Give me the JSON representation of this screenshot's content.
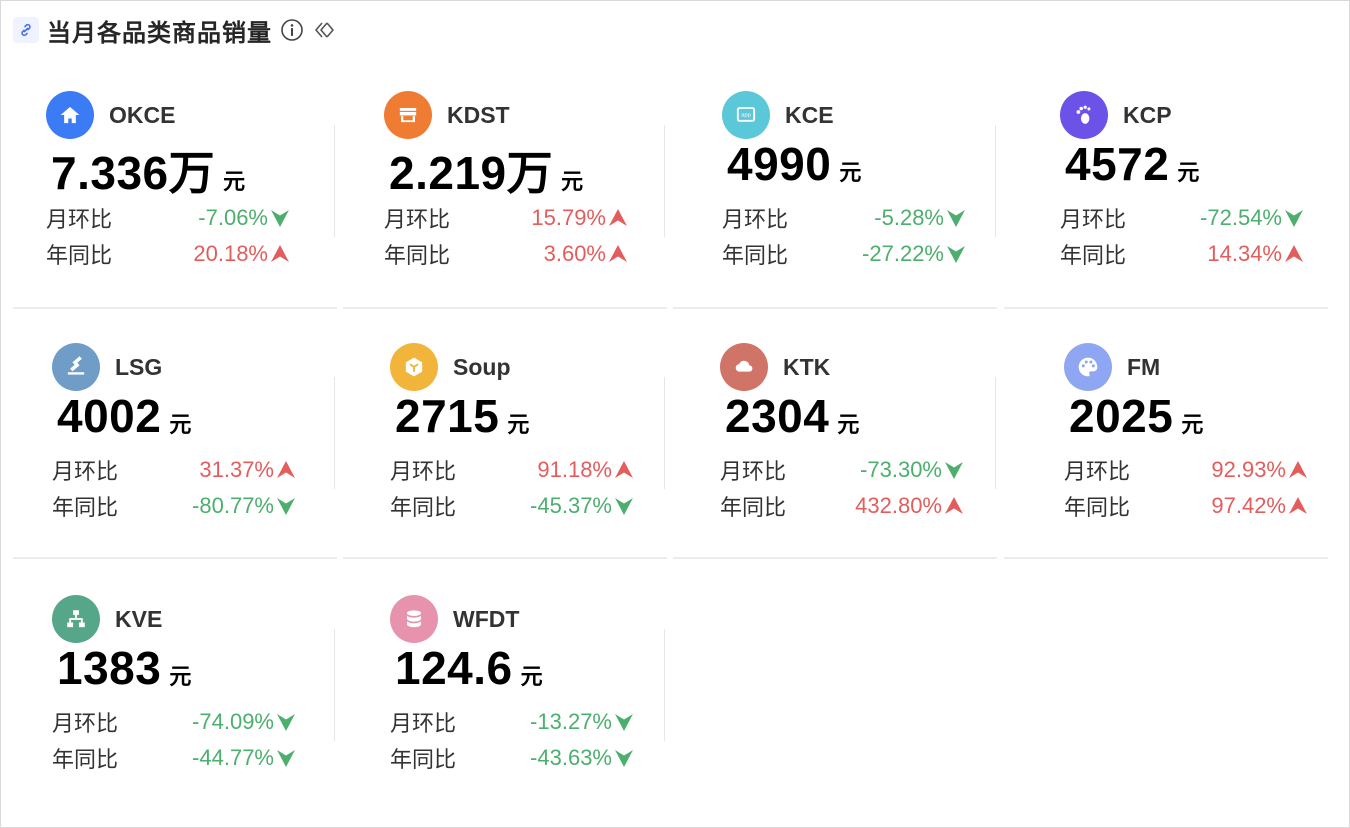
{
  "header": {
    "title": "当月各品类商品销量"
  },
  "unit_label": "元",
  "stat_labels": {
    "mom": "月环比",
    "yoy": "年同比"
  },
  "colors": {
    "up": "#e35d5d",
    "down": "#4caf6e"
  },
  "cards": [
    {
      "name": "OKCE",
      "value": "7.336万",
      "icon": "home-icon",
      "icon_color": "#3b7bf6",
      "mom": {
        "value": "-7.06%",
        "dir": "down"
      },
      "yoy": {
        "value": "20.18%",
        "dir": "up"
      }
    },
    {
      "name": "KDST",
      "value": "2.219万",
      "icon": "storefront-icon",
      "icon_color": "#f07b32",
      "mom": {
        "value": "15.79%",
        "dir": "up"
      },
      "yoy": {
        "value": "3.60%",
        "dir": "up"
      }
    },
    {
      "name": "KCE",
      "value": "4990",
      "icon": "monitor-icon",
      "icon_color": "#5bc8d9",
      "mom": {
        "value": "-5.28%",
        "dir": "down"
      },
      "yoy": {
        "value": "-27.22%",
        "dir": "down"
      }
    },
    {
      "name": "KCP",
      "value": "4572",
      "icon": "footprint-icon",
      "icon_color": "#6c52e6",
      "mom": {
        "value": "-72.54%",
        "dir": "down"
      },
      "yoy": {
        "value": "14.34%",
        "dir": "up"
      }
    },
    {
      "name": "LSG",
      "value": "4002",
      "icon": "gavel-icon",
      "icon_color": "#6f9dc8",
      "mom": {
        "value": "31.37%",
        "dir": "up"
      },
      "yoy": {
        "value": "-80.77%",
        "dir": "down"
      }
    },
    {
      "name": "Soup",
      "value": "2715",
      "icon": "cube-icon",
      "icon_color": "#f2b53c",
      "mom": {
        "value": "91.18%",
        "dir": "up"
      },
      "yoy": {
        "value": "-45.37%",
        "dir": "down"
      }
    },
    {
      "name": "KTK",
      "value": "2304",
      "icon": "cloud-icon",
      "icon_color": "#d07468",
      "mom": {
        "value": "-73.30%",
        "dir": "down"
      },
      "yoy": {
        "value": "432.80%",
        "dir": "up"
      }
    },
    {
      "name": "FM",
      "value": "2025",
      "icon": "palette-icon",
      "icon_color": "#8fa6f2",
      "mom": {
        "value": "92.93%",
        "dir": "up"
      },
      "yoy": {
        "value": "97.42%",
        "dir": "up"
      }
    },
    {
      "name": "KVE",
      "value": "1383",
      "icon": "hierarchy-icon",
      "icon_color": "#56a68a",
      "mom": {
        "value": "-74.09%",
        "dir": "down"
      },
      "yoy": {
        "value": "-44.77%",
        "dir": "down"
      }
    },
    {
      "name": "WFDT",
      "value": "124.6",
      "icon": "database-icon",
      "icon_color": "#e893ad",
      "mom": {
        "value": "-13.27%",
        "dir": "down"
      },
      "yoy": {
        "value": "-43.63%",
        "dir": "down"
      }
    }
  ]
}
